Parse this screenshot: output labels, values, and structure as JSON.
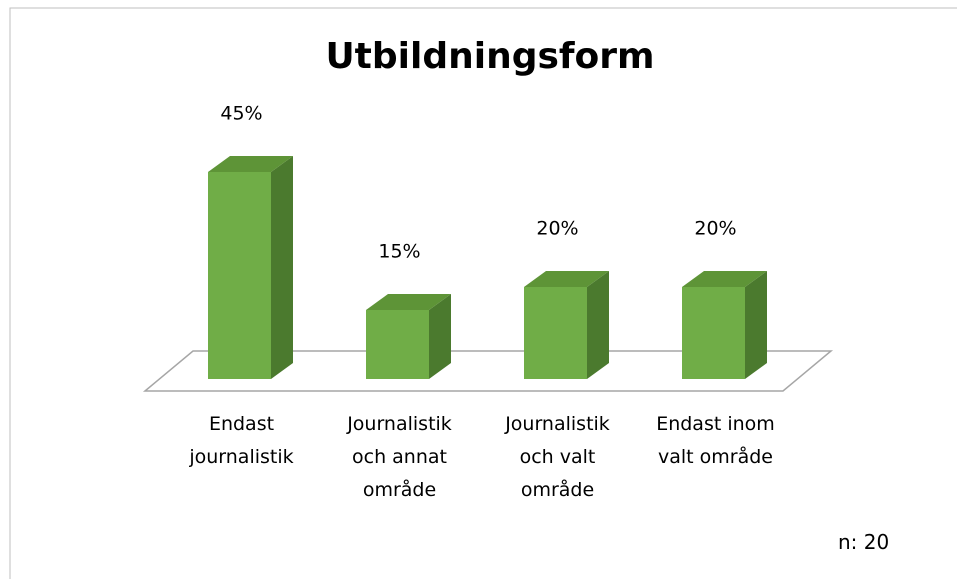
{
  "chart_data": {
    "type": "bar3d",
    "title": "Utbildningsform",
    "categories": [
      "Endast journalistik",
      "Journalistik och annat område",
      "Journalistik och valt område",
      "Endast inom valt område"
    ],
    "values": [
      45,
      15,
      20,
      20
    ],
    "value_labels": [
      "45%",
      "15%",
      "20%",
      "20%"
    ],
    "color": "#70ad47",
    "annotation": "n: 20"
  }
}
